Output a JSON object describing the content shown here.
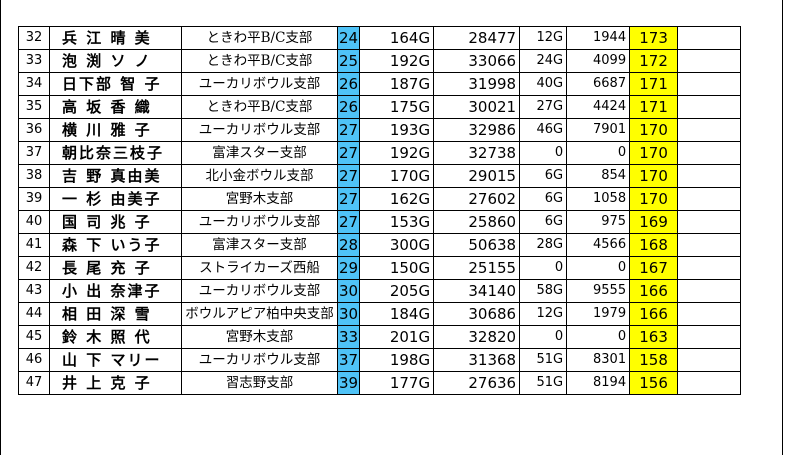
{
  "rows": [
    {
      "no": "32",
      "name": "兵 江 晴 美",
      "club": "ときわ平B/C支部",
      "rank": "24",
      "games": "164G",
      "points": "28477",
      "bonus_games": "12G",
      "bonus_points": "1944",
      "avg": "173"
    },
    {
      "no": "33",
      "name": "泡 渕 ソ ノ",
      "club": "ときわ平B/C支部",
      "rank": "25",
      "games": "192G",
      "points": "33066",
      "bonus_games": "24G",
      "bonus_points": "4099",
      "avg": "172"
    },
    {
      "no": "34",
      "name": "日下部 智 子",
      "club": "ユーカリボウル支部",
      "rank": "26",
      "games": "187G",
      "points": "31998",
      "bonus_games": "40G",
      "bonus_points": "6687",
      "avg": "171"
    },
    {
      "no": "35",
      "name": "高 坂 香 織",
      "club": "ときわ平B/C支部",
      "rank": "26",
      "games": "175G",
      "points": "30021",
      "bonus_games": "27G",
      "bonus_points": "4424",
      "avg": "171"
    },
    {
      "no": "36",
      "name": "横 川 雅 子",
      "club": "ユーカリボウル支部",
      "rank": "27",
      "games": "193G",
      "points": "32986",
      "bonus_games": "46G",
      "bonus_points": "7901",
      "avg": "170"
    },
    {
      "no": "37",
      "name": "朝比奈三枝子",
      "club": "富津スター支部",
      "rank": "27",
      "games": "192G",
      "points": "32738",
      "bonus_games": "0",
      "bonus_points": "0",
      "avg": "170"
    },
    {
      "no": "38",
      "name": "吉 野 真由美",
      "club": "北小金ボウル支部",
      "rank": "27",
      "games": "170G",
      "points": "29015",
      "bonus_games": "6G",
      "bonus_points": "854",
      "avg": "170"
    },
    {
      "no": "39",
      "name": "一 杉 由美子",
      "club": "宮野木支部",
      "rank": "27",
      "games": "162G",
      "points": "27602",
      "bonus_games": "6G",
      "bonus_points": "1058",
      "avg": "170"
    },
    {
      "no": "40",
      "name": "国 司 兆 子",
      "club": "ユーカリボウル支部",
      "rank": "27",
      "games": "153G",
      "points": "25860",
      "bonus_games": "6G",
      "bonus_points": "975",
      "avg": "169"
    },
    {
      "no": "41",
      "name": "森 下 いう子",
      "club": "富津スター支部",
      "rank": "28",
      "games": "300G",
      "points": "50638",
      "bonus_games": "28G",
      "bonus_points": "4566",
      "avg": "168"
    },
    {
      "no": "42",
      "name": "長 尾 充 子",
      "club": "ストライカーズ西船",
      "rank": "29",
      "games": "150G",
      "points": "25155",
      "bonus_games": "0",
      "bonus_points": "0",
      "avg": "167"
    },
    {
      "no": "43",
      "name": "小 出 奈津子",
      "club": "ユーカリボウル支部",
      "rank": "30",
      "games": "205G",
      "points": "34140",
      "bonus_games": "58G",
      "bonus_points": "9555",
      "avg": "166"
    },
    {
      "no": "44",
      "name": "相 田 深 雪",
      "club": "ボウルアピア柏中央支部",
      "rank": "30",
      "games": "184G",
      "points": "30686",
      "bonus_games": "12G",
      "bonus_points": "1979",
      "avg": "166"
    },
    {
      "no": "45",
      "name": "鈴 木 照 代",
      "club": "宮野木支部",
      "rank": "33",
      "games": "201G",
      "points": "32820",
      "bonus_games": "0",
      "bonus_points": "0",
      "avg": "163"
    },
    {
      "no": "46",
      "name": "山 下 マリー",
      "club": "ユーカリボウル支部",
      "rank": "37",
      "games": "198G",
      "points": "31368",
      "bonus_games": "51G",
      "bonus_points": "8301",
      "avg": "158"
    },
    {
      "no": "47",
      "name": "井 上 克 子",
      "club": "習志野支部",
      "rank": "39",
      "games": "177G",
      "points": "27636",
      "bonus_games": "51G",
      "bonus_points": "8194",
      "avg": "156"
    }
  ]
}
